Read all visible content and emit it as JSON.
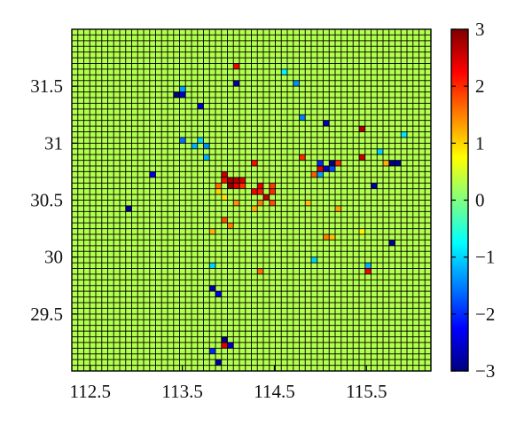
{
  "chart_data": {
    "type": "heatmap",
    "title": "",
    "xlabel": "",
    "ylabel": "",
    "xlim": [
      112.3,
      116.2
    ],
    "ylim": [
      29.0,
      32.0
    ],
    "xticks": [
      112.5,
      113.5,
      114.5,
      115.5
    ],
    "xtick_labels": [
      "112.5",
      "113.5",
      "114.5",
      "115.5"
    ],
    "yticks": [
      29.5,
      30,
      30.5,
      31,
      31.5
    ],
    "ytick_labels": [
      "29.5",
      "30",
      "30.5",
      "31",
      "31.5"
    ],
    "colorbar": {
      "min": -3,
      "max": 3,
      "ticks": [
        -3,
        -2,
        -1,
        0,
        1,
        2,
        3
      ],
      "tick_labels": [
        "−3",
        "−2",
        "−1",
        "0",
        "1",
        "2",
        "3"
      ],
      "colormap": "jet"
    },
    "grid": true,
    "grid_shape": [
      60,
      60
    ],
    "background_value": 0.3,
    "cells": [
      {
        "x": 113.98,
        "y": 30.72,
        "value": 2.6
      },
      {
        "x": 114.03,
        "y": 30.7,
        "value": 2.8
      },
      {
        "x": 114.08,
        "y": 30.68,
        "value": 2.7
      },
      {
        "x": 114.12,
        "y": 30.66,
        "value": 2.5
      },
      {
        "x": 114.02,
        "y": 30.64,
        "value": 2.9
      },
      {
        "x": 114.07,
        "y": 30.62,
        "value": 2.4
      },
      {
        "x": 113.95,
        "y": 30.66,
        "value": 2.2
      },
      {
        "x": 114.18,
        "y": 30.6,
        "value": 2.0
      },
      {
        "x": 114.25,
        "y": 30.58,
        "value": 2.3
      },
      {
        "x": 114.32,
        "y": 30.55,
        "value": 2.1
      },
      {
        "x": 114.38,
        "y": 30.6,
        "value": 2.4
      },
      {
        "x": 114.42,
        "y": 30.52,
        "value": 2.6
      },
      {
        "x": 114.47,
        "y": 30.55,
        "value": 2.0
      },
      {
        "x": 114.5,
        "y": 30.48,
        "value": 1.8
      },
      {
        "x": 114.35,
        "y": 30.47,
        "value": 1.5
      },
      {
        "x": 114.3,
        "y": 30.42,
        "value": 1.2
      },
      {
        "x": 113.88,
        "y": 30.62,
        "value": 1.6
      },
      {
        "x": 113.9,
        "y": 30.55,
        "value": 1.0
      },
      {
        "x": 113.98,
        "y": 30.52,
        "value": 0.9
      },
      {
        "x": 114.1,
        "y": 30.5,
        "value": 1.4
      },
      {
        "x": 113.95,
        "y": 30.3,
        "value": 1.8
      },
      {
        "x": 114.0,
        "y": 30.28,
        "value": 1.5
      },
      {
        "x": 113.82,
        "y": 30.25,
        "value": 1.2
      },
      {
        "x": 114.27,
        "y": 30.83,
        "value": 2.2
      },
      {
        "x": 114.8,
        "y": 30.9,
        "value": 2.0
      },
      {
        "x": 115.02,
        "y": 30.82,
        "value": -2.0
      },
      {
        "x": 115.07,
        "y": 30.78,
        "value": -2.6
      },
      {
        "x": 115.1,
        "y": 30.83,
        "value": -3.0
      },
      {
        "x": 115.13,
        "y": 30.76,
        "value": -1.8
      },
      {
        "x": 115.0,
        "y": 30.73,
        "value": -1.3
      },
      {
        "x": 114.97,
        "y": 30.78,
        "value": 2.4
      },
      {
        "x": 114.92,
        "y": 30.75,
        "value": 1.7
      },
      {
        "x": 115.22,
        "y": 30.8,
        "value": 2.0
      },
      {
        "x": 115.57,
        "y": 30.62,
        "value": -2.8
      },
      {
        "x": 115.78,
        "y": 30.83,
        "value": -3.0
      },
      {
        "x": 115.85,
        "y": 30.83,
        "value": -2.9
      },
      {
        "x": 115.7,
        "y": 30.8,
        "value": 1.2
      },
      {
        "x": 115.63,
        "y": 30.95,
        "value": -1.0
      },
      {
        "x": 115.45,
        "y": 30.85,
        "value": 2.6
      },
      {
        "x": 115.42,
        "y": 31.1,
        "value": 2.7
      },
      {
        "x": 115.05,
        "y": 31.2,
        "value": -2.7
      },
      {
        "x": 114.82,
        "y": 31.22,
        "value": -1.5
      },
      {
        "x": 114.62,
        "y": 31.6,
        "value": -0.8
      },
      {
        "x": 114.73,
        "y": 31.52,
        "value": -1.4
      },
      {
        "x": 114.06,
        "y": 31.68,
        "value": 2.3
      },
      {
        "x": 114.06,
        "y": 31.53,
        "value": -2.8
      },
      {
        "x": 113.42,
        "y": 31.45,
        "value": -3.0
      },
      {
        "x": 113.47,
        "y": 31.43,
        "value": -2.6
      },
      {
        "x": 113.52,
        "y": 31.46,
        "value": -1.3
      },
      {
        "x": 113.68,
        "y": 31.3,
        "value": -2.5
      },
      {
        "x": 113.48,
        "y": 31.03,
        "value": -1.6
      },
      {
        "x": 113.63,
        "y": 31.0,
        "value": -1.2
      },
      {
        "x": 113.72,
        "y": 31.02,
        "value": -1.0
      },
      {
        "x": 113.77,
        "y": 30.98,
        "value": -1.4
      },
      {
        "x": 113.75,
        "y": 30.9,
        "value": -1.2
      },
      {
        "x": 113.15,
        "y": 30.72,
        "value": -2.4
      },
      {
        "x": 112.9,
        "y": 30.42,
        "value": -2.9
      },
      {
        "x": 113.85,
        "y": 29.95,
        "value": -1.0
      },
      {
        "x": 114.38,
        "y": 29.85,
        "value": 2.5
      },
      {
        "x": 114.35,
        "y": 29.88,
        "value": 1.6
      },
      {
        "x": 113.85,
        "y": 29.72,
        "value": -2.7
      },
      {
        "x": 113.9,
        "y": 29.68,
        "value": -2.4
      },
      {
        "x": 113.98,
        "y": 29.28,
        "value": -3.0
      },
      {
        "x": 114.02,
        "y": 29.25,
        "value": -2.7
      },
      {
        "x": 113.95,
        "y": 29.25,
        "value": 2.4
      },
      {
        "x": 114.05,
        "y": 29.22,
        "value": -2.5
      },
      {
        "x": 113.82,
        "y": 29.18,
        "value": -2.0
      },
      {
        "x": 113.88,
        "y": 29.08,
        "value": -2.8
      },
      {
        "x": 114.95,
        "y": 30.0,
        "value": -1.0
      },
      {
        "x": 115.05,
        "y": 30.18,
        "value": 1.5
      },
      {
        "x": 115.15,
        "y": 30.2,
        "value": 1.1
      },
      {
        "x": 115.55,
        "y": 29.88,
        "value": 2.3
      },
      {
        "x": 115.5,
        "y": 29.92,
        "value": -1.2
      },
      {
        "x": 115.78,
        "y": 30.15,
        "value": -2.9
      },
      {
        "x": 115.18,
        "y": 30.45,
        "value": 1.3
      },
      {
        "x": 115.45,
        "y": 30.22,
        "value": 0.8
      },
      {
        "x": 114.85,
        "y": 30.48,
        "value": 1.1
      },
      {
        "x": 115.92,
        "y": 31.08,
        "value": -0.9
      },
      {
        "x": 114.48,
        "y": 30.65,
        "value": 1.9
      }
    ]
  }
}
